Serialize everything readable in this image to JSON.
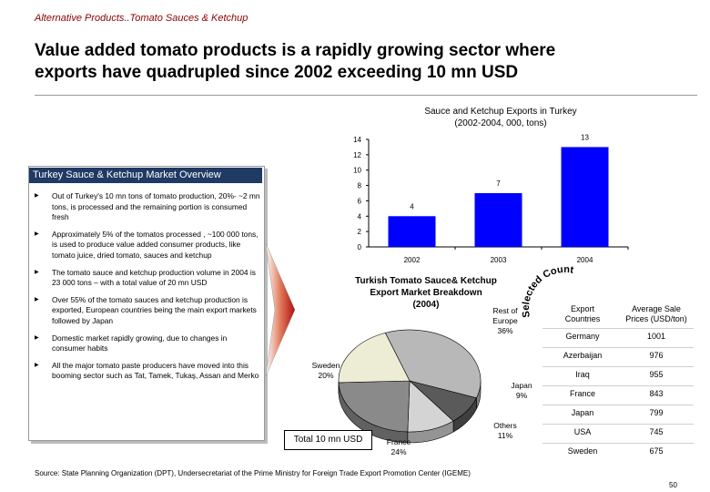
{
  "header": {
    "breadcrumb": "Alternative Products..Tomato Sauces & Ketchup",
    "headline_line1": "Value added tomato products is a rapidly growing sector where",
    "headline_line2": "exports have quadrupled since 2002 exceeding 10 mn USD"
  },
  "overview": {
    "title": "Turkey Sauce & Ketchup Market Overview",
    "bullets": [
      "Out of Turkey's 10 mn tons of tomato production, 20%- ~2 mn tons, is processed and the remaining portion is consumed fresh",
      "Approximately 5% of the tomatos processed , ~100 000 tons, is used to produce value added consumer products, like tomato juice, dried tomato, sauces and ketchup",
      "The tomato sauce and ketchup production volume in 2004 is 23 000  tons – with a total value of 20 mn USD",
      "Over 55% of the tomato sauces and ketchup production is exported, European countries being the main export markets followed by Japan",
      "Domestic market rapidly growing, due to changes in consumer habits",
      "All the major tomato paste producers have moved into this booming sector such as Tat, Tamek, Tukaş, Assan and Merko"
    ]
  },
  "selected_countries_label": "Selected Countries",
  "total_box": "Total 10 mn USD",
  "price_table": {
    "headers": [
      "Export Countries",
      "Average Sale Prices (USD/ton)"
    ],
    "header_col1_lines": [
      "Export",
      "Countries"
    ],
    "header_col2_lines": [
      "Average Sale",
      "Prices (USD/ton)"
    ],
    "rows": [
      {
        "country": "Germany",
        "price": "1001"
      },
      {
        "country": "Azerbaijan",
        "price": "976"
      },
      {
        "country": "Iraq",
        "price": "955"
      },
      {
        "country": "France",
        "price": "843"
      },
      {
        "country": "Japan",
        "price": "799"
      },
      {
        "country": "USA",
        "price": "745"
      },
      {
        "country": "Sweden",
        "price": "675"
      }
    ]
  },
  "footer": {
    "source": "Source: State Planning Organization (DPT), Undersecretariat of the Prime Ministry for Foreign Trade Export Promotion Center (IGEME)",
    "page": "50"
  },
  "chart_data": [
    {
      "type": "bar",
      "title_line1": "Sauce and Ketchup Exports in Turkey",
      "title_line2": "(2002-2004, 000, tons)",
      "categories": [
        "2002",
        "2003",
        "2004"
      ],
      "values": [
        4,
        7,
        13
      ],
      "ylim": [
        0,
        14
      ],
      "yticks": [
        "0",
        "2",
        "4",
        "6",
        "8",
        "10",
        "12",
        "14"
      ],
      "bar_color": "#0000ff",
      "grid": false
    },
    {
      "type": "pie",
      "title_lines": [
        "Turkish Tomato Sauce& Ketchup",
        "Export  Market Breakdown",
        "(2004)"
      ],
      "slices": [
        {
          "label": "Rest of Europe",
          "label_lines": [
            "Rest of",
            "Europe"
          ],
          "value": 36,
          "value_text": "36%",
          "color": "#b8b8b8"
        },
        {
          "label": "Japan",
          "label_lines": [
            "Japan"
          ],
          "value": 9,
          "value_text": "9%",
          "color": "#5a5a5a"
        },
        {
          "label": "Others",
          "label_lines": [
            "Others"
          ],
          "value": 11,
          "value_text": "11%",
          "color": "#d4d4d4"
        },
        {
          "label": "France",
          "label_lines": [
            "France"
          ],
          "value": 24,
          "value_text": "24%",
          "color": "#8a8a8a"
        },
        {
          "label": "Sweden",
          "label_lines": [
            "Sweden"
          ],
          "value": 20,
          "value_text": "20%",
          "color": "#ededd6"
        }
      ]
    }
  ]
}
